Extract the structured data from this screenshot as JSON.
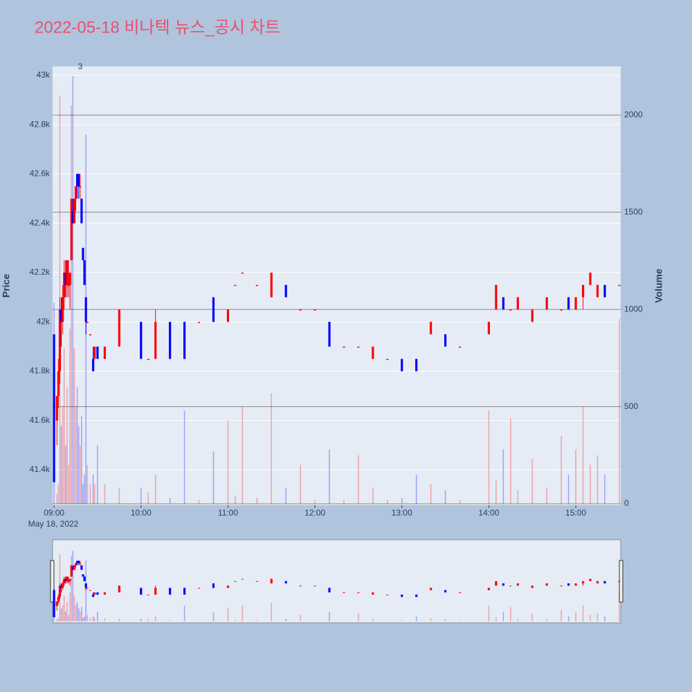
{
  "chart_data": {
    "type": "candlestick",
    "title": "2022-05-18 비나텍 뉴스_공시 차트",
    "ylabel": "Price",
    "y2label": "Volume",
    "x_sublabel": "May 18, 2022",
    "annotation": "3",
    "increasing_color": "#ff0000",
    "decreasing_color": "#0000ff",
    "x": [
      "09:00",
      "09:02",
      "09:03",
      "09:04",
      "09:05",
      "09:06",
      "09:07",
      "09:08",
      "09:09",
      "09:10",
      "09:11",
      "09:12",
      "09:13",
      "09:14",
      "09:15",
      "09:16",
      "09:17",
      "09:18",
      "09:19",
      "09:20",
      "09:21",
      "09:22",
      "09:23",
      "09:25",
      "09:27",
      "09:28",
      "09:30",
      "09:35",
      "09:45",
      "10:00",
      "10:05",
      "10:10",
      "10:20",
      "10:30",
      "10:40",
      "10:50",
      "11:00",
      "11:05",
      "11:10",
      "11:20",
      "11:30",
      "11:40",
      "11:50",
      "12:00",
      "12:10",
      "12:20",
      "12:30",
      "12:40",
      "12:50",
      "13:00",
      "13:10",
      "13:20",
      "13:30",
      "13:40",
      "14:00",
      "14:05",
      "14:10",
      "14:15",
      "14:20",
      "14:30",
      "14:40",
      "14:50",
      "14:55",
      "15:00",
      "15:05",
      "15:10",
      "15:15",
      "15:20",
      "15:30"
    ],
    "open": [
      41950,
      41600,
      41700,
      41800,
      42050,
      42000,
      42100,
      42200,
      42150,
      42150,
      42150,
      42250,
      42450,
      42400,
      42500,
      42600,
      42600,
      42550,
      42500,
      42300,
      42250,
      42100,
      42000,
      41950,
      41850,
      41850,
      41900,
      41850,
      41900,
      42000,
      41850,
      41850,
      42000,
      42000,
      42000,
      42100,
      42000,
      42150,
      42200,
      42150,
      42100,
      42150,
      42050,
      42050,
      42000,
      41900,
      41900,
      41850,
      41850,
      41850,
      41850,
      41950,
      41950,
      41900,
      41950,
      42050,
      42100,
      42050,
      42050,
      42000,
      42050,
      42050,
      42100,
      42050,
      42100,
      42150,
      42100,
      42150,
      42150
    ],
    "high": [
      41950,
      41700,
      41850,
      42100,
      42100,
      42150,
      42250,
      42250,
      42250,
      42250,
      42200,
      42500,
      42500,
      42500,
      42550,
      42600,
      42600,
      42600,
      42500,
      42300,
      42250,
      42100,
      42000,
      41950,
      41900,
      41900,
      41900,
      41900,
      42050,
      42000,
      41850,
      42050,
      42000,
      42000,
      42000,
      42100,
      42050,
      42150,
      42200,
      42150,
      42200,
      42150,
      42050,
      42050,
      42000,
      41900,
      41900,
      41900,
      41850,
      41850,
      41850,
      42000,
      41950,
      41900,
      42000,
      42150,
      42100,
      42050,
      42100,
      42050,
      42100,
      42050,
      42100,
      42100,
      42150,
      42200,
      42150,
      42150,
      42150
    ],
    "low": [
      41350,
      41500,
      41650,
      41750,
      41900,
      41950,
      42050,
      42100,
      42100,
      42100,
      42050,
      42250,
      42400,
      42400,
      42450,
      42500,
      42500,
      42500,
      42400,
      42250,
      42150,
      41950,
      42000,
      41950,
      41800,
      41850,
      41850,
      41850,
      41900,
      41850,
      41850,
      41850,
      41850,
      41850,
      42000,
      42000,
      42000,
      42150,
      42200,
      42150,
      42100,
      42100,
      42050,
      42050,
      41900,
      41900,
      41900,
      41850,
      41850,
      41800,
      41800,
      41950,
      41900,
      41900,
      41950,
      42050,
      42050,
      42050,
      42050,
      42000,
      42050,
      42050,
      42050,
      42050,
      42050,
      42150,
      42100,
      42100,
      42150
    ],
    "close": [
      41350,
      41700,
      41800,
      42050,
      42000,
      42100,
      42200,
      42150,
      42250,
      42150,
      42200,
      42500,
      42400,
      42500,
      42550,
      42550,
      42550,
      42550,
      42400,
      42250,
      42150,
      42000,
      42000,
      41950,
      41800,
      41900,
      41850,
      41900,
      42050,
      41850,
      41850,
      42000,
      41850,
      41850,
      42000,
      42000,
      42050,
      42150,
      42200,
      42150,
      42200,
      42100,
      42050,
      42050,
      41900,
      41900,
      41900,
      41900,
      41850,
      41800,
      41800,
      42000,
      41900,
      41900,
      42000,
      42150,
      42050,
      42050,
      42100,
      42050,
      42100,
      42050,
      42050,
      42100,
      42150,
      42200,
      42150,
      42100,
      42150
    ],
    "volume": [
      1035,
      50,
      100,
      2100,
      400,
      500,
      800,
      300,
      600,
      200,
      900,
      2050,
      2200,
      800,
      500,
      600,
      400,
      300,
      450,
      100,
      150,
      1900,
      200,
      100,
      150,
      100,
      300,
      100,
      80,
      80,
      60,
      150,
      30,
      480,
      20,
      270,
      430,
      40,
      500,
      30,
      570,
      80,
      200,
      20,
      280,
      20,
      250,
      80,
      20,
      30,
      150,
      100,
      70,
      20,
      480,
      120,
      280,
      440,
      70,
      230,
      80,
      350,
      150,
      280,
      500,
      200,
      250,
      150,
      950
    ],
    "xlim": [
      "08:59",
      "15:31"
    ],
    "xticks": [
      "09:00",
      "10:00",
      "11:00",
      "12:00",
      "13:00",
      "14:00",
      "15:00"
    ],
    "ylim": [
      41257,
      43036
    ],
    "yticks": [
      {
        "value": 41400,
        "label": "41.4k"
      },
      {
        "value": 41600,
        "label": "41.6k"
      },
      {
        "value": 41800,
        "label": "41.8k"
      },
      {
        "value": 42000,
        "label": "42k"
      },
      {
        "value": 42200,
        "label": "42.2k"
      },
      {
        "value": 42400,
        "label": "42.4k"
      },
      {
        "value": 42600,
        "label": "42.6k"
      },
      {
        "value": 42800,
        "label": "42.8k"
      },
      {
        "value": 43000,
        "label": "43k"
      }
    ],
    "y2lim": [
      -7,
      2250
    ],
    "y2ticks": [
      0,
      500,
      1000,
      1500,
      2000
    ],
    "grid": true
  }
}
